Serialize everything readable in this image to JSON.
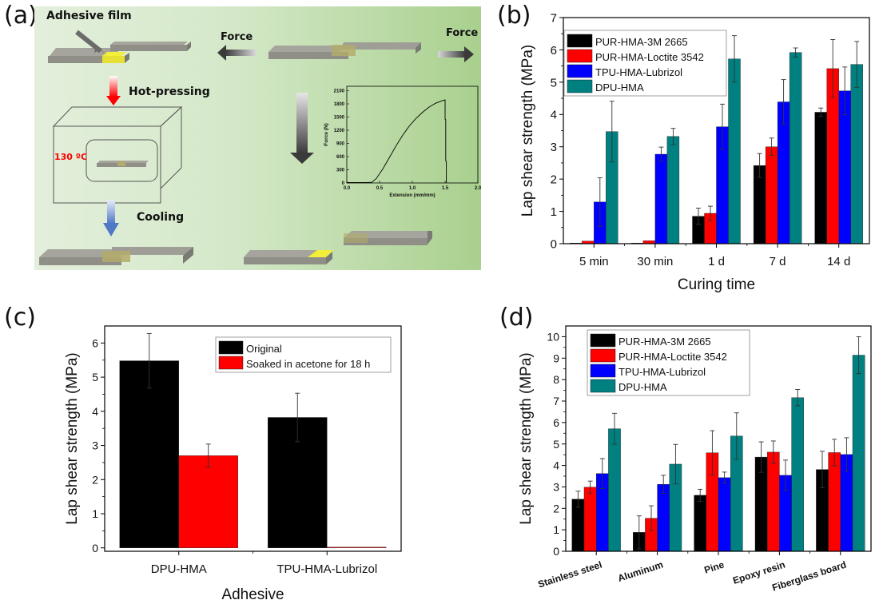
{
  "panels": {
    "a": {
      "label": "(a)"
    },
    "b": {
      "label": "(b)"
    },
    "c": {
      "label": "(c)"
    },
    "d": {
      "label": "(d)"
    }
  },
  "schematic": {
    "adhesive_film": "Adhesive film",
    "hot_pressing": "Hot-pressing",
    "temperature": "130 ºC",
    "cooling": "Cooling",
    "force_left": "Force",
    "force_right": "Force",
    "colors": {
      "background_start": "#e3efdc",
      "background_end": "#a9d08e",
      "substrate": "#9a9a92",
      "adhesive": "#f2ee3a",
      "heat_arrow": "#ff0000",
      "cool_arrow": "#5b86cf"
    }
  },
  "colors": {
    "PUR-HMA-3M 2665": "#000000",
    "PUR-HMA-Loctite 3542": "#ff0000",
    "TPU-HMA-Lubrizol": "#0000ff",
    "DPU-HMA": "#008080",
    "Original": "#000000",
    "Soaked in acetone for 18 h": "#ff0000"
  },
  "chart_data": [
    {
      "id": "inset",
      "type": "line",
      "title": "",
      "xlabel": "Extension (mm/mm)",
      "ylabel": "Force (N)",
      "xlim": [
        0,
        2.0
      ],
      "ylim": [
        0,
        2200
      ],
      "xticks": [
        "0.0",
        "0.5",
        "1.0",
        "1.5",
        "2.0"
      ],
      "yticks": [
        "0",
        "300",
        "600",
        "900",
        "1200",
        "1500",
        "1800",
        "2100"
      ],
      "series": [
        {
          "name": "force-extension",
          "x": [
            0.0,
            0.3,
            0.38,
            0.45,
            0.55,
            0.65,
            0.75,
            0.85,
            0.95,
            1.05,
            1.15,
            1.25,
            1.35,
            1.45,
            1.5,
            1.5,
            1.51,
            1.51,
            1.52,
            1.52
          ],
          "y": [
            10,
            10,
            15,
            100,
            320,
            580,
            840,
            1080,
            1290,
            1460,
            1600,
            1720,
            1810,
            1870,
            1890,
            1450,
            1440,
            500,
            490,
            0
          ]
        }
      ]
    },
    {
      "id": "b",
      "type": "bar",
      "title": "",
      "xlabel": "Curing time",
      "ylabel": "Lap shear strength (MPa)",
      "categories": [
        "5 min",
        "30 min",
        "1 d",
        "7 d",
        "14 d"
      ],
      "ylim": [
        0,
        7
      ],
      "yticks": [
        "0",
        "1",
        "2",
        "3",
        "4",
        "5",
        "6",
        "7"
      ],
      "legend": "top-left",
      "series": [
        {
          "name": "PUR-HMA-3M 2665",
          "values": [
            0.02,
            0.02,
            0.85,
            2.42,
            4.07
          ],
          "errors": [
            0,
            0,
            0.25,
            0.37,
            0.13
          ]
        },
        {
          "name": "PUR-HMA-Loctite 3542",
          "values": [
            0.08,
            0.09,
            0.94,
            3.0,
            5.42
          ],
          "errors": [
            0,
            0,
            0.22,
            0.27,
            0.9
          ]
        },
        {
          "name": "TPU-HMA-Lubrizol",
          "values": [
            1.29,
            2.77,
            3.62,
            4.39,
            4.73
          ],
          "errors": [
            0.75,
            0.22,
            0.7,
            0.69,
            0.74
          ]
        },
        {
          "name": "DPU-HMA",
          "values": [
            3.47,
            3.32,
            5.72,
            5.92,
            5.55
          ],
          "errors": [
            0.94,
            0.25,
            0.72,
            0.14,
            0.71
          ]
        }
      ]
    },
    {
      "id": "c",
      "type": "bar",
      "title": "",
      "xlabel": "Adhesive",
      "ylabel": "Lap shear strength (MPa)",
      "categories": [
        "DPU-HMA",
        "TPU-HMA-Lubrizol"
      ],
      "ylim": [
        -0.1,
        6.5
      ],
      "yticks": [
        "0",
        "1",
        "2",
        "3",
        "4",
        "5",
        "6"
      ],
      "legend": "top-right",
      "series": [
        {
          "name": "Original",
          "values": [
            5.48,
            3.82
          ],
          "errors": [
            0.8,
            0.71
          ]
        },
        {
          "name": "Soaked in acetone for 18 h",
          "values": [
            2.7,
            0.02
          ],
          "errors": [
            0.34,
            0
          ]
        }
      ]
    },
    {
      "id": "d",
      "type": "bar",
      "title": "",
      "xlabel": "",
      "ylabel": "Lap shear strength (MPa)",
      "categories": [
        "Stainless steel",
        "Aluminum",
        "Pine",
        "Epoxy resin",
        "Fiberglass board"
      ],
      "ylim": [
        0,
        10.5
      ],
      "yticks": [
        "0",
        "1",
        "2",
        "3",
        "4",
        "5",
        "6",
        "7",
        "8",
        "9",
        "10"
      ],
      "legend": "top-left",
      "series": [
        {
          "name": "PUR-HMA-3M 2665",
          "values": [
            2.43,
            0.88,
            2.61,
            4.39,
            3.81
          ],
          "errors": [
            0.37,
            0.77,
            0.28,
            0.71,
            0.85
          ]
        },
        {
          "name": "PUR-HMA-Loctite 3542",
          "values": [
            2.99,
            1.54,
            4.59,
            4.62,
            4.6
          ],
          "errors": [
            0.28,
            0.58,
            1.03,
            0.52,
            0.62
          ]
        },
        {
          "name": "TPU-HMA-Lubrizol",
          "values": [
            3.62,
            3.12,
            3.43,
            3.54,
            4.51
          ],
          "errors": [
            0.7,
            0.42,
            0.26,
            0.71,
            0.78
          ]
        },
        {
          "name": "DPU-HMA",
          "values": [
            5.71,
            4.06,
            5.37,
            7.16,
            9.14
          ],
          "errors": [
            0.72,
            0.92,
            1.08,
            0.38,
            0.86
          ]
        }
      ]
    }
  ]
}
